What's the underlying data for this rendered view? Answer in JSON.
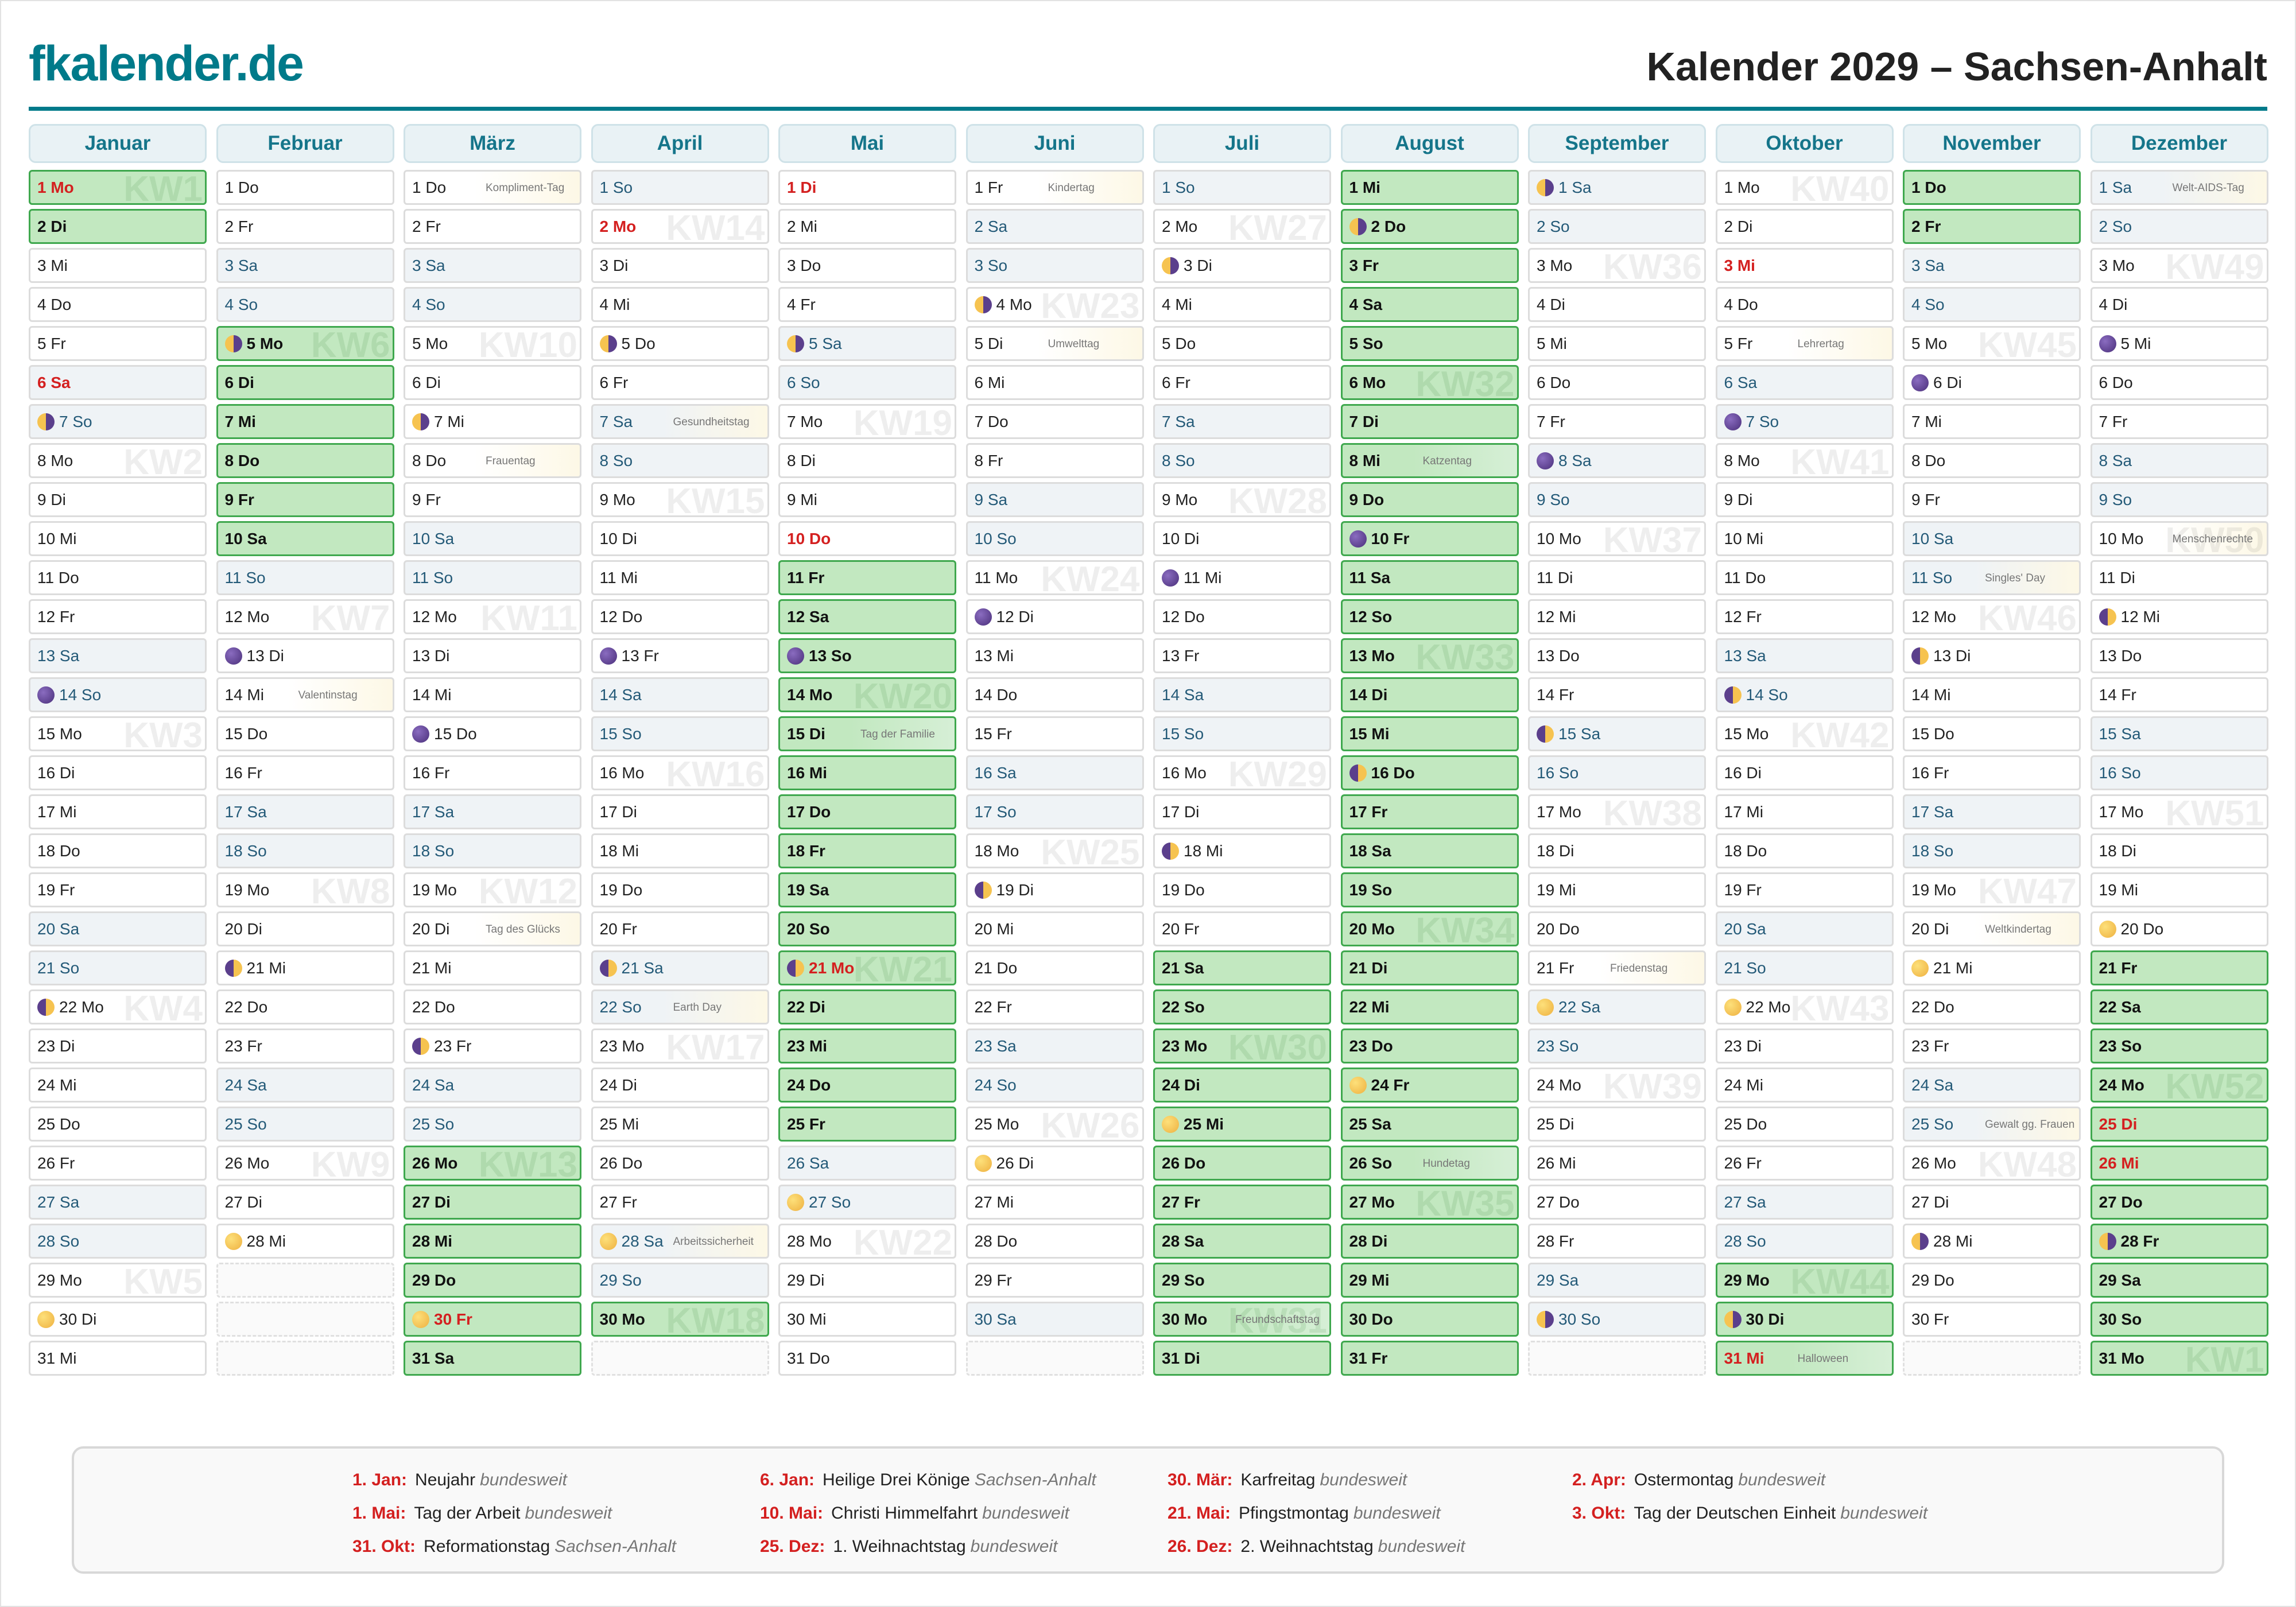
{
  "header": {
    "logo": "fkalender.de",
    "title": "Kalender 2029 – Sachsen-Anhalt"
  },
  "colors": {
    "brand": "#007a8a",
    "holiday": "#d42020",
    "vacation": "#c2e8c0",
    "weekend": "#eff3f6"
  },
  "weekdays": [
    "Mo",
    "Di",
    "Mi",
    "Do",
    "Fr",
    "Sa",
    "So"
  ],
  "kw_prefix": "KW",
  "year": 2029,
  "months": [
    {
      "name": "Januar",
      "start": 0,
      "length": 31,
      "holidays": [
        1,
        6
      ],
      "vacation": [
        [
          1,
          2
        ]
      ],
      "moons": {
        "7": "last",
        "14": "new",
        "22": "first",
        "30": "full"
      },
      "events": {}
    },
    {
      "name": "Februar",
      "start": 3,
      "length": 28,
      "holidays": [],
      "vacation": [
        [
          5,
          10
        ]
      ],
      "moons": {
        "5": "last",
        "13": "new",
        "21": "first",
        "28": "full"
      },
      "events": {
        "14": "Valentinstag"
      }
    },
    {
      "name": "März",
      "start": 3,
      "length": 31,
      "holidays": [
        30
      ],
      "vacation": [
        [
          26,
          31
        ]
      ],
      "moons": {
        "7": "last",
        "15": "new",
        "23": "first",
        "30": "full"
      },
      "events": {
        "1": "Kompliment-Tag",
        "8": "Frauentag",
        "20": "Tag des Glücks"
      }
    },
    {
      "name": "April",
      "start": 6,
      "length": 30,
      "holidays": [
        2
      ],
      "vacation": [
        [
          30,
          30
        ]
      ],
      "moons": {
        "5": "last",
        "13": "new",
        "21": "first",
        "28": "full"
      },
      "events": {
        "7": "Gesundheitstag",
        "22": "Earth Day",
        "28": "Arbeitssicherheit"
      }
    },
    {
      "name": "Mai",
      "start": 1,
      "length": 31,
      "holidays": [
        1,
        10,
        21
      ],
      "vacation": [
        [
          11,
          25
        ]
      ],
      "moons": {
        "5": "last",
        "13": "new",
        "21": "first",
        "27": "full"
      },
      "events": {
        "15": "Tag der Familie"
      }
    },
    {
      "name": "Juni",
      "start": 4,
      "length": 30,
      "holidays": [],
      "vacation": [],
      "moons": {
        "4": "last",
        "12": "new",
        "19": "first",
        "26": "full"
      },
      "events": {
        "1": "Kindertag",
        "5": "Umwelttag"
      }
    },
    {
      "name": "Juli",
      "start": 6,
      "length": 31,
      "holidays": [],
      "vacation": [
        [
          21,
          31
        ]
      ],
      "moons": {
        "3": "last",
        "11": "new",
        "18": "first",
        "25": "full"
      },
      "events": {
        "30": "Freundschaftstag"
      }
    },
    {
      "name": "August",
      "start": 2,
      "length": 31,
      "holidays": [],
      "vacation": [
        [
          1,
          31
        ]
      ],
      "moons": {
        "2": "last",
        "10": "new",
        "16": "first",
        "24": "full"
      },
      "events": {
        "8": "Katzentag",
        "26": "Hundetag"
      }
    },
    {
      "name": "September",
      "start": 5,
      "length": 30,
      "holidays": [],
      "vacation": [],
      "moons": {
        "1": "last",
        "8": "new",
        "15": "first",
        "22": "full",
        "30": "last"
      },
      "events": {
        "21": "Friedenstag"
      }
    },
    {
      "name": "Oktober",
      "start": 0,
      "length": 31,
      "holidays": [
        3,
        31
      ],
      "vacation": [
        [
          29,
          31
        ]
      ],
      "moons": {
        "7": "new",
        "14": "first",
        "22": "full",
        "30": "last"
      },
      "events": {
        "5": "Lehrertag",
        "31": "Halloween"
      }
    },
    {
      "name": "November",
      "start": 3,
      "length": 30,
      "holidays": [],
      "vacation": [
        [
          1,
          2
        ]
      ],
      "moons": {
        "6": "new",
        "13": "first",
        "21": "full",
        "28": "last"
      },
      "events": {
        "11": "Singles' Day",
        "20": "Weltkindertag",
        "25": "Gewalt gg. Frauen"
      }
    },
    {
      "name": "Dezember",
      "start": 5,
      "length": 31,
      "holidays": [
        25,
        26
      ],
      "vacation": [
        [
          21,
          31
        ]
      ],
      "moons": {
        "5": "new",
        "12": "first",
        "20": "full",
        "28": "last"
      },
      "events": {
        "1": "Welt-AIDS-Tag",
        "10": "Menschenrechte"
      }
    }
  ],
  "legend": [
    {
      "date": "1. Jan:",
      "name": "Neujahr",
      "scope": "bundesweit"
    },
    {
      "date": "1. Mai:",
      "name": "Tag der Arbeit",
      "scope": "bundesweit"
    },
    {
      "date": "31. Okt:",
      "name": "Reformationstag",
      "scope": "Sachsen-Anhalt"
    },
    {
      "date": "6. Jan:",
      "name": "Heilige Drei Könige",
      "scope": "Sachsen-Anhalt"
    },
    {
      "date": "10. Mai:",
      "name": "Christi Himmelfahrt",
      "scope": "bundesweit"
    },
    {
      "date": "25. Dez:",
      "name": "1. Weihnachtstag",
      "scope": "bundesweit"
    },
    {
      "date": "30. Mär:",
      "name": "Karfreitag",
      "scope": "bundesweit"
    },
    {
      "date": "21. Mai:",
      "name": "Pfingstmontag",
      "scope": "bundesweit"
    },
    {
      "date": "26. Dez:",
      "name": "2. Weihnachtstag",
      "scope": "bundesweit"
    },
    {
      "date": "2. Apr:",
      "name": "Ostermontag",
      "scope": "bundesweit"
    },
    {
      "date": "3. Okt:",
      "name": "Tag der Deutschen Einheit",
      "scope": "bundesweit"
    }
  ]
}
